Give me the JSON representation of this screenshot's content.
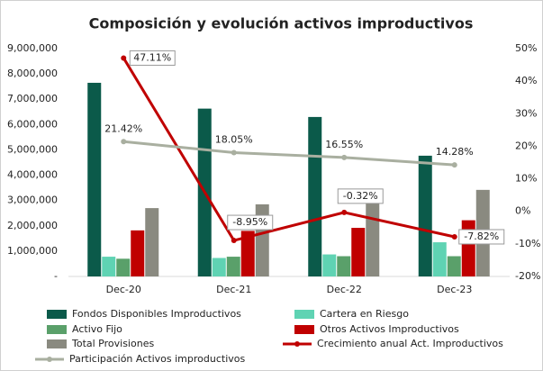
{
  "chart_data": {
    "type": "bar",
    "title": "Composición y evolución activos improductivos",
    "categories": [
      "Dec-20",
      "Dec-21",
      "Dec-22",
      "Dec-23"
    ],
    "series": [
      {
        "name": "Fondos Disponibles Improductivos",
        "color": "#0b5a4a",
        "values": [
          7650000,
          6630000,
          6300000,
          4770000
        ]
      },
      {
        "name": "Cartera en Riesgo",
        "color": "#5fd3b3",
        "values": [
          780000,
          730000,
          870000,
          1350000
        ]
      },
      {
        "name": "Activo Fijo",
        "color": "#5aa06a",
        "values": [
          700000,
          780000,
          800000,
          800000
        ]
      },
      {
        "name": "Otros Activos Improductivos",
        "color": "#c00000",
        "values": [
          1820000,
          1800000,
          1920000,
          2220000
        ]
      },
      {
        "name": "Total Provisiones",
        "color": "#8a8a80",
        "values": [
          2700000,
          2850000,
          3200000,
          3420000
        ]
      },
      {
        "name": "Crecimiento anual Act. Improductivos",
        "color": "#c00000",
        "type": "line",
        "axis": "y2",
        "values": [
          47.11,
          -8.95,
          -0.32,
          -7.82
        ],
        "value_labels": [
          "47.11%",
          "-8.95%",
          "-0.32%",
          "-7.82%"
        ]
      },
      {
        "name": "Participación Activos improductivos",
        "color": "#a9afa0",
        "type": "line",
        "axis": "y2",
        "values": [
          21.42,
          18.05,
          16.55,
          14.28
        ],
        "value_labels": [
          "21.42%",
          "18.05%",
          "16.55%",
          "14.28%"
        ]
      }
    ],
    "ylim": [
      0,
      9000000
    ],
    "yticks": [
      {
        "value": 0,
        "label": "-"
      },
      {
        "value": 1000000,
        "label": "1,000,000"
      },
      {
        "value": 2000000,
        "label": "2,000,000"
      },
      {
        "value": 3000000,
        "label": "3,000,000"
      },
      {
        "value": 4000000,
        "label": "4,000,000"
      },
      {
        "value": 5000000,
        "label": "5,000,000"
      },
      {
        "value": 6000000,
        "label": "6,000,000"
      },
      {
        "value": 7000000,
        "label": "7,000,000"
      },
      {
        "value": 8000000,
        "label": "8,000,000"
      },
      {
        "value": 9000000,
        "label": "9,000,000"
      }
    ],
    "y2lim": [
      -20,
      50
    ],
    "y2ticks": [
      {
        "value": -20,
        "label": "-20%"
      },
      {
        "value": -10,
        "label": "-10%"
      },
      {
        "value": 0,
        "label": "0%"
      },
      {
        "value": 10,
        "label": "10%"
      },
      {
        "value": 20,
        "label": "20%"
      },
      {
        "value": 30,
        "label": "30%"
      },
      {
        "value": 40,
        "label": "40%"
      },
      {
        "value": 50,
        "label": "50%"
      }
    ],
    "grid": false,
    "legend": "bottom"
  }
}
